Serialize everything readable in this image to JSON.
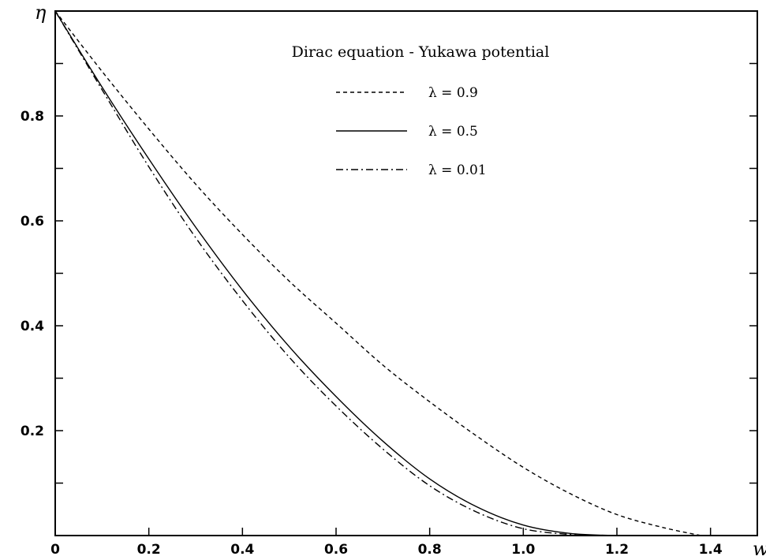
{
  "chart_data": {
    "type": "line",
    "title": "Dirac equation - Yukawa potential",
    "xlabel": "w",
    "ylabel": "η",
    "xlim": [
      0,
      1.5
    ],
    "ylim": [
      0,
      1.0
    ],
    "x_ticks": [
      0,
      0.2,
      0.4,
      0.6,
      0.8,
      1.0,
      1.2,
      1.4
    ],
    "x_tick_labels": [
      "0",
      "0.2",
      "0.4",
      "0.6",
      "0.8",
      "1.0",
      "1.2",
      "1.4"
    ],
    "y_ticks": [
      0.1,
      0.2,
      0.3,
      0.4,
      0.5,
      0.6,
      0.7,
      0.8,
      0.9
    ],
    "y_tick_labels": [
      "",
      "0.2",
      "",
      "0.4",
      "",
      "0.6",
      "",
      "0.8",
      ""
    ],
    "grid": false,
    "legend_position": "top-center",
    "series": [
      {
        "name": "λ = 0.9",
        "style": "dashed",
        "color": "#000000",
        "x": [
          0,
          0.1,
          0.2,
          0.3,
          0.4,
          0.5,
          0.6,
          0.7,
          0.8,
          0.9,
          1.0,
          1.1,
          1.2,
          1.3,
          1.38
        ],
        "y": [
          1.0,
          0.885,
          0.775,
          0.67,
          0.574,
          0.485,
          0.405,
          0.325,
          0.255,
          0.19,
          0.13,
          0.08,
          0.04,
          0.015,
          0.0
        ]
      },
      {
        "name": "λ = 0.5",
        "style": "solid",
        "color": "#000000",
        "x": [
          0,
          0.1,
          0.2,
          0.3,
          0.4,
          0.5,
          0.6,
          0.7,
          0.8,
          0.9,
          1.0,
          1.1,
          1.2
        ],
        "y": [
          1.0,
          0.855,
          0.718,
          0.588,
          0.468,
          0.36,
          0.265,
          0.18,
          0.108,
          0.055,
          0.02,
          0.004,
          0.0
        ]
      },
      {
        "name": "λ = 0.01",
        "style": "dashdot",
        "color": "#000000",
        "x": [
          0,
          0.1,
          0.2,
          0.3,
          0.4,
          0.5,
          0.6,
          0.7,
          0.8,
          0.9,
          1.0,
          1.1,
          1.15
        ],
        "y": [
          1.0,
          0.85,
          0.703,
          0.568,
          0.448,
          0.34,
          0.247,
          0.165,
          0.095,
          0.045,
          0.013,
          0.002,
          0.0
        ]
      }
    ]
  }
}
